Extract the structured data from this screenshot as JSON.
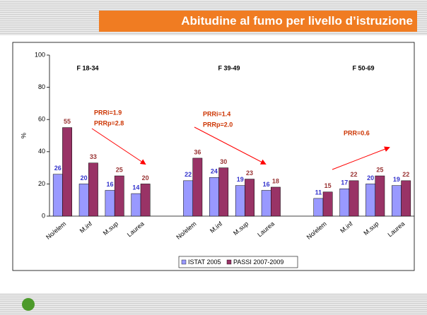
{
  "slide_title": "Abitudine al fumo per livello d’istruzione",
  "chart_data": {
    "type": "bar",
    "group_titles": [
      "F 18-34",
      "F 39-49",
      "F 50-69"
    ],
    "annotations": [
      "PRRi=1.9",
      "PRRp=2.8",
      "PRRi=1.4",
      "PRRp=2.0",
      "PRR=0.6"
    ],
    "y_label": "%",
    "categories": [
      "No/elem",
      "M.inf",
      "M.sup",
      "Laurea",
      null,
      "No/elem",
      "M.inf",
      "M.sup",
      "Laurea",
      null,
      "No/elem",
      "M.inf",
      "M.sup",
      "Laurea"
    ],
    "series": [
      {
        "name": "ISTAT 2005",
        "color": "#9999ff",
        "label_color": "#3333cc",
        "values": [
          26,
          20,
          16,
          14,
          null,
          22,
          24,
          19,
          16,
          null,
          11,
          17,
          20,
          19
        ]
      },
      {
        "name": "PASSI 2007-2009",
        "color": "#993366",
        "label_color": "#993333",
        "values": [
          55,
          33,
          25,
          20,
          null,
          36,
          30,
          23,
          18,
          null,
          15,
          22,
          25,
          22
        ]
      }
    ],
    "ylim": [
      0,
      100
    ],
    "yticks": [
      0,
      20,
      40,
      60,
      80,
      100
    ],
    "grid": false
  }
}
